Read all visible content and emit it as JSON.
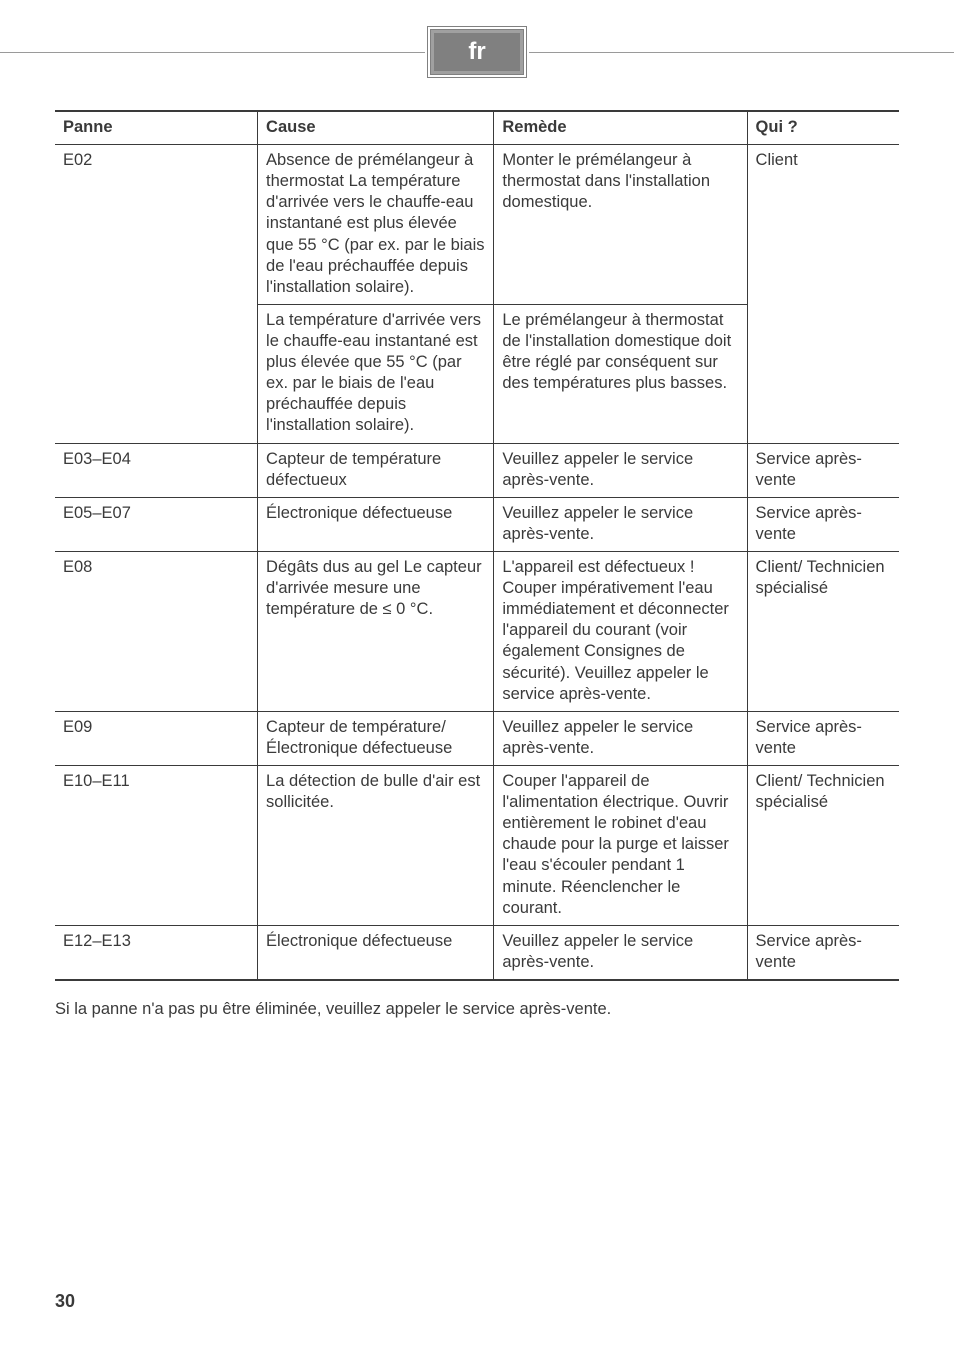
{
  "lang_badge": "fr",
  "headers": {
    "panne": "Panne",
    "cause": "Cause",
    "remede": "Remède",
    "qui": "Qui ?"
  },
  "rows": {
    "e02": {
      "panne": "E02",
      "cause1": "Absence de prémélangeur à thermostat\nLa température d'arrivée vers le chauffe-eau instantané est plus élevée que 55 °C (par ex. par le biais de l'eau préchauffée depuis l'installation solaire).",
      "remede1": "Monter le prémélangeur à thermostat dans l'installation domestique.",
      "qui1": "Client",
      "cause2": "La température d'arrivée vers le chauffe-eau instantané est plus élevée que 55 °C (par ex. par le biais de l'eau préchauffée depuis l'installation solaire).",
      "remede2": "Le prémélangeur à thermostat de l'installation domestique doit être réglé par conséquent sur des températures plus basses."
    },
    "e03": {
      "panne": "E03–E04",
      "cause": "Capteur de température défectueux",
      "remede": "Veuillez appeler le service après-vente.",
      "qui": "Service après-vente"
    },
    "e05": {
      "panne": "E05–E07",
      "cause": "Électronique défectueuse",
      "remede": "Veuillez appeler le service après-vente.",
      "qui": "Service après-vente"
    },
    "e08": {
      "panne": "E08",
      "cause": "Dégâts dus au gel\nLe capteur d'arrivée mesure une température de ≤ 0 °C.",
      "remede": "L'appareil est défectueux ! Couper impérativement l'eau immédiatement et déconnecter l'appareil du courant (voir également Consignes de sécurité). Veuillez appeler le service après-vente.",
      "qui": "Client/\nTechnicien spécialisé"
    },
    "e09": {
      "panne": "E09",
      "cause": "Capteur de température/ Électronique défectueuse",
      "remede": "Veuillez appeler le service après-vente.",
      "qui": "Service après-vente"
    },
    "e10": {
      "panne": "E10–E11",
      "cause": "La détection de bulle d'air est sollicitée.",
      "remede": "Couper l'appareil de l'alimentation électrique. Ouvrir entièrement le robinet d'eau chaude pour la purge et laisser l'eau s'écouler pendant 1 minute. Réenclencher le courant.",
      "qui": "Client/\nTechnicien spécialisé"
    },
    "e12": {
      "panne": "E12–E13",
      "cause": "Électronique défectueuse",
      "remede": "Veuillez appeler le service après-vente.",
      "qui": "Service après-vente"
    }
  },
  "footer": "Si la panne n'a pas pu être éliminée, veuillez appeler le service après-vente.",
  "page_number": "30"
}
